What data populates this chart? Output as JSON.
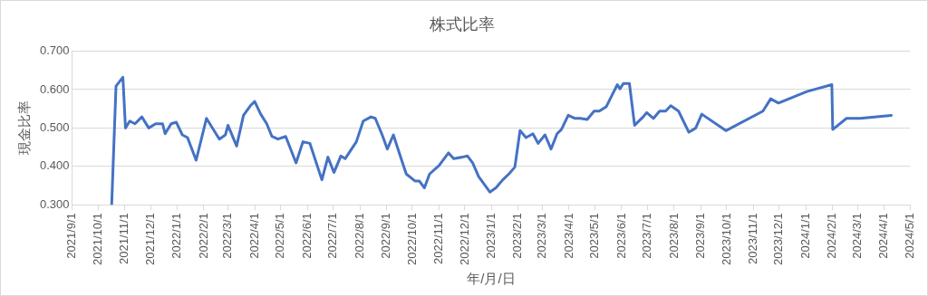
{
  "chart_data": {
    "type": "line",
    "title": "株式比率",
    "xlabel": "年/月/日",
    "ylabel": "現金比率",
    "x": [
      "2021-10-17",
      "2021-10-22",
      "2021-10-30",
      "2021-11-02",
      "2021-11-07",
      "2021-11-13",
      "2021-11-21",
      "2021-11-29",
      "2021-12-07",
      "2021-12-15",
      "2021-12-18",
      "2021-12-25",
      "2021-12-31",
      "2022-01-07",
      "2022-01-13",
      "2022-01-23",
      "2022-02-04",
      "2022-02-19",
      "2022-02-26",
      "2022-03-01",
      "2022-03-11",
      "2022-03-19",
      "2022-03-27",
      "2022-04-01",
      "2022-04-08",
      "2022-04-15",
      "2022-04-21",
      "2022-04-28",
      "2022-05-07",
      "2022-05-19",
      "2022-05-27",
      "2022-06-04",
      "2022-06-18",
      "2022-06-25",
      "2022-07-02",
      "2022-07-10",
      "2022-07-15",
      "2022-07-28",
      "2022-08-05",
      "2022-08-14",
      "2022-08-19",
      "2022-08-27",
      "2022-09-02",
      "2022-09-09",
      "2022-09-18",
      "2022-09-24",
      "2022-10-04",
      "2022-10-09",
      "2022-10-15",
      "2022-10-21",
      "2022-11-01",
      "2022-11-12",
      "2022-11-18",
      "2022-11-28",
      "2022-12-04",
      "2022-12-10",
      "2022-12-17",
      "2022-12-30",
      "2023-01-06",
      "2023-01-14",
      "2023-01-21",
      "2023-01-28",
      "2023-02-03",
      "2023-02-10",
      "2023-02-18",
      "2023-02-24",
      "2023-03-04",
      "2023-03-11",
      "2023-03-18",
      "2023-03-23",
      "2023-03-31",
      "2023-04-08",
      "2023-04-14",
      "2023-04-22",
      "2023-04-30",
      "2023-05-06",
      "2023-05-14",
      "2023-05-22",
      "2023-05-27",
      "2023-05-30",
      "2023-06-03",
      "2023-06-10",
      "2023-06-16",
      "2023-06-26",
      "2023-06-30",
      "2023-07-08",
      "2023-07-15",
      "2023-07-22",
      "2023-07-28",
      "2023-08-06",
      "2023-08-18",
      "2023-08-26",
      "2023-09-02",
      "2023-09-30",
      "2023-11-12",
      "2023-11-21",
      "2023-11-30",
      "2024-01-02",
      "2024-01-31",
      "2024-02-01",
      "2024-02-17",
      "2024-03-04",
      "2024-04-09"
    ],
    "series": [
      {
        "color": "#4472c4",
        "values": [
          0.3,
          0.609,
          0.632,
          0.5,
          0.518,
          0.511,
          0.529,
          0.5,
          0.511,
          0.511,
          0.485,
          0.511,
          0.515,
          0.482,
          0.475,
          0.416,
          0.525,
          0.471,
          0.482,
          0.507,
          0.453,
          0.533,
          0.558,
          0.569,
          0.536,
          0.511,
          0.478,
          0.471,
          0.478,
          0.409,
          0.464,
          0.46,
          0.365,
          0.424,
          0.384,
          0.427,
          0.42,
          0.464,
          0.518,
          0.529,
          0.525,
          0.482,
          0.445,
          0.482,
          0.42,
          0.38,
          0.362,
          0.362,
          0.344,
          0.38,
          0.402,
          0.435,
          0.42,
          0.424,
          0.427,
          0.409,
          0.373,
          0.333,
          0.344,
          0.365,
          0.38,
          0.398,
          0.493,
          0.475,
          0.485,
          0.46,
          0.482,
          0.445,
          0.485,
          0.496,
          0.533,
          0.525,
          0.525,
          0.522,
          0.544,
          0.544,
          0.555,
          0.591,
          0.613,
          0.602,
          0.616,
          0.616,
          0.507,
          0.529,
          0.54,
          0.525,
          0.544,
          0.544,
          0.558,
          0.544,
          0.489,
          0.5,
          0.536,
          0.493,
          0.544,
          0.576,
          0.565,
          0.595,
          0.613,
          0.496,
          0.525,
          0.525,
          0.533
        ]
      }
    ],
    "xlim": [
      "2021-09-01",
      "2024-05-01"
    ],
    "xticks": [
      {
        "value": "2021-09-01",
        "label": "2021/9/1"
      },
      {
        "value": "2021-10-01",
        "label": "2021/10/1"
      },
      {
        "value": "2021-11-01",
        "label": "2021/11/1"
      },
      {
        "value": "2021-12-01",
        "label": "2021/12/1"
      },
      {
        "value": "2022-01-01",
        "label": "2022/1/1"
      },
      {
        "value": "2022-02-01",
        "label": "2022/2/1"
      },
      {
        "value": "2022-03-01",
        "label": "2022/3/1"
      },
      {
        "value": "2022-04-01",
        "label": "2022/4/1"
      },
      {
        "value": "2022-05-01",
        "label": "2022/5/1"
      },
      {
        "value": "2022-06-01",
        "label": "2022/6/1"
      },
      {
        "value": "2022-07-01",
        "label": "2022/7/1"
      },
      {
        "value": "2022-08-01",
        "label": "2022/8/1"
      },
      {
        "value": "2022-09-01",
        "label": "2022/9/1"
      },
      {
        "value": "2022-10-01",
        "label": "2022/10/1"
      },
      {
        "value": "2022-11-01",
        "label": "2022/11/1"
      },
      {
        "value": "2022-12-01",
        "label": "2022/12/1"
      },
      {
        "value": "2023-01-01",
        "label": "2023/1/1"
      },
      {
        "value": "2023-02-01",
        "label": "2023/2/1"
      },
      {
        "value": "2023-03-01",
        "label": "2023/3/1"
      },
      {
        "value": "2023-04-01",
        "label": "2023/4/1"
      },
      {
        "value": "2023-05-01",
        "label": "2023/5/1"
      },
      {
        "value": "2023-06-01",
        "label": "2023/6/1"
      },
      {
        "value": "2023-07-01",
        "label": "2023/7/1"
      },
      {
        "value": "2023-08-01",
        "label": "2023/8/1"
      },
      {
        "value": "2023-09-01",
        "label": "2023/9/1"
      },
      {
        "value": "2023-10-01",
        "label": "2023/10/1"
      },
      {
        "value": "2023-11-01",
        "label": "2023/11/1"
      },
      {
        "value": "2023-12-01",
        "label": "2023/12/1"
      },
      {
        "value": "2024-01-01",
        "label": "2024/1/1"
      },
      {
        "value": "2024-02-01",
        "label": "2024/2/1"
      },
      {
        "value": "2024-03-01",
        "label": "2024/3/1"
      },
      {
        "value": "2024-04-01",
        "label": "2024/4/1"
      },
      {
        "value": "2024-05-01",
        "label": "2024/5/1"
      }
    ],
    "ylim": [
      0.3,
      0.7
    ],
    "yticks": [
      {
        "value": 0.3,
        "label": "0.300"
      },
      {
        "value": 0.4,
        "label": "0.400"
      },
      {
        "value": 0.5,
        "label": "0.500"
      },
      {
        "value": 0.6,
        "label": "0.600"
      },
      {
        "value": 0.7,
        "label": "0.700"
      }
    ],
    "grid": "y",
    "legend": false,
    "marker": "none",
    "line_style": "solid"
  }
}
